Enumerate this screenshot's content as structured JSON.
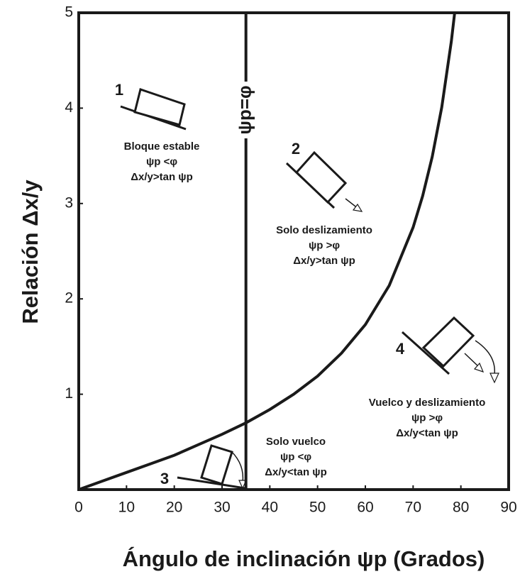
{
  "chart_data": {
    "type": "line",
    "xlabel": "Ángulo de inclinación ψp (Grados)",
    "ylabel": "Relación Δx/y",
    "x": [
      0,
      5,
      10,
      15,
      20,
      25,
      30,
      35,
      40,
      45,
      50,
      55,
      60,
      65,
      70,
      72,
      74,
      76,
      78,
      78.7
    ],
    "series": [
      {
        "color": "#1a1a1a",
        "values": [
          0,
          0.09,
          0.18,
          0.27,
          0.36,
          0.47,
          0.58,
          0.7,
          0.84,
          1.0,
          1.19,
          1.43,
          1.73,
          2.14,
          2.75,
          3.08,
          3.49,
          4.01,
          4.7,
          5.0
        ]
      }
    ],
    "xlim": [
      0,
      90
    ],
    "xticks": [
      0,
      10,
      20,
      30,
      40,
      50,
      60,
      70,
      80,
      90
    ],
    "ylim": [
      0,
      5
    ],
    "yticks": [
      1,
      2,
      3,
      4,
      5
    ],
    "reference_line": {
      "x": 35,
      "label": "ψp=φ"
    },
    "annotations": [
      {
        "label": "1",
        "lines": [
          "Bloque estable",
          "ψp <φ",
          "Δx/y>tan ψp"
        ]
      },
      {
        "label": "2",
        "lines": [
          "Solo deslizamiento",
          "ψp >φ",
          "Δx/y>tan ψp"
        ]
      },
      {
        "label": "3",
        "lines": [
          "Solo vuelco",
          "ψp <φ",
          "Δx/y<tan ψp"
        ]
      },
      {
        "label": "4",
        "lines": [
          "Vuelco y deslizamiento",
          "ψp >φ",
          "Δx/y<tan ψp"
        ]
      }
    ]
  }
}
